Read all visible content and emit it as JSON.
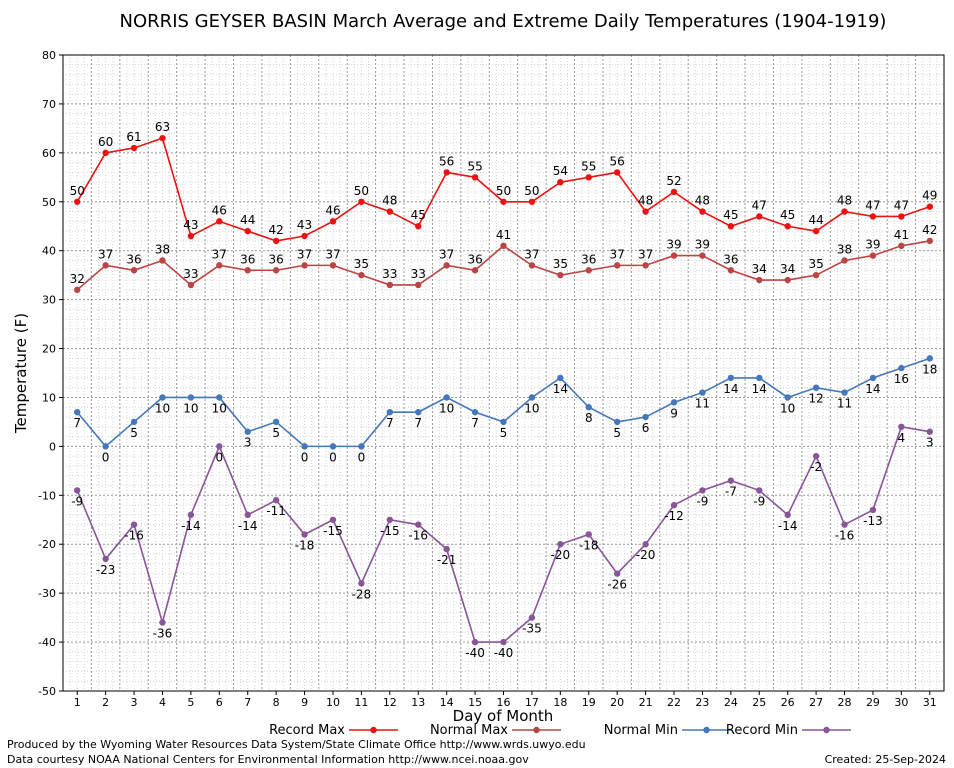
{
  "chart_data": {
    "type": "line",
    "title": "NORRIS GEYSER BASIN March Average and Extreme Daily Temperatures (1904-1919)",
    "xlabel": "Day of Month",
    "ylabel": "Temperature (F)",
    "ylim": [
      -50,
      80
    ],
    "yticks": [
      -50,
      -40,
      -30,
      -20,
      -10,
      0,
      10,
      20,
      30,
      40,
      50,
      60,
      70,
      80
    ],
    "x": [
      1,
      2,
      3,
      4,
      5,
      6,
      7,
      8,
      9,
      10,
      11,
      12,
      13,
      14,
      15,
      16,
      17,
      18,
      19,
      20,
      21,
      22,
      23,
      24,
      25,
      26,
      27,
      28,
      29,
      30,
      31
    ],
    "grid": true,
    "legend_placement": "bottom",
    "series": [
      {
        "name": "Record Max",
        "color": "#ee1111",
        "values": [
          50,
          60,
          61,
          63,
          43,
          46,
          44,
          42,
          43,
          46,
          50,
          48,
          45,
          56,
          55,
          50,
          50,
          54,
          55,
          56,
          48,
          52,
          48,
          45,
          47,
          45,
          44,
          48,
          47,
          47,
          49
        ]
      },
      {
        "name": "Normal Max",
        "color": "#bb4444",
        "values": [
          32,
          37,
          36,
          38,
          33,
          37,
          36,
          36,
          37,
          37,
          35,
          33,
          33,
          37,
          36,
          41,
          37,
          35,
          36,
          37,
          37,
          39,
          39,
          36,
          34,
          34,
          35,
          38,
          39,
          41,
          42
        ]
      },
      {
        "name": "Normal Min",
        "color": "#4477bb",
        "values": [
          7,
          0,
          5,
          10,
          10,
          10,
          3,
          5,
          0,
          0,
          0,
          7,
          7,
          10,
          7,
          5,
          10,
          14,
          8,
          5,
          6,
          9,
          11,
          14,
          14,
          10,
          12,
          11,
          14,
          16,
          18
        ]
      },
      {
        "name": "Record Min",
        "color": "#885599",
        "values": [
          -9,
          -23,
          -16,
          -36,
          -14,
          0,
          -14,
          -11,
          -18,
          -15,
          -28,
          -15,
          -16,
          -21,
          -40,
          -40,
          -35,
          -20,
          -18,
          -26,
          -20,
          -12,
          -9,
          -7,
          -9,
          -14,
          -2,
          -16,
          -13,
          4,
          3
        ]
      }
    ]
  },
  "footer": {
    "produced_by": "Produced by the Wyoming Water Resources Data System/State Climate Office http://www.wrds.uwyo.edu",
    "courtesy": "Data courtesy NOAA National Centers for Environmental Information http://www.ncei.noaa.gov",
    "created": "Created: 25-Sep-2024"
  }
}
